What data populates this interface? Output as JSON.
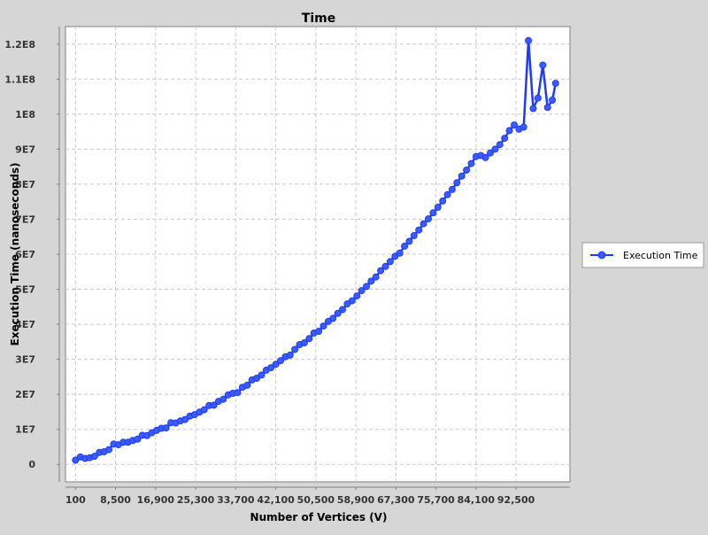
{
  "chart_data": {
    "type": "line",
    "title": "Time",
    "xlabel": "Number of Vertices (V)",
    "ylabel": "Execution Time (nanoseconds)",
    "xlim": [
      -2000,
      103800
    ],
    "ylim": [
      -5000000,
      125000000
    ],
    "x_ticks": [
      {
        "value": 100,
        "label": "100"
      },
      {
        "value": 8500,
        "label": "8,500"
      },
      {
        "value": 16900,
        "label": "16,900"
      },
      {
        "value": 25300,
        "label": "25,300"
      },
      {
        "value": 33700,
        "label": "33,700"
      },
      {
        "value": 42100,
        "label": "42,100"
      },
      {
        "value": 50500,
        "label": "50,500"
      },
      {
        "value": 58900,
        "label": "58,900"
      },
      {
        "value": 67300,
        "label": "67,300"
      },
      {
        "value": 75700,
        "label": "75,700"
      },
      {
        "value": 84100,
        "label": "84,100"
      },
      {
        "value": 92500,
        "label": "92,500"
      }
    ],
    "y_ticks": [
      {
        "value": 0,
        "label": "0"
      },
      {
        "value": 10000000,
        "label": "1E7"
      },
      {
        "value": 20000000,
        "label": "2E7"
      },
      {
        "value": 30000000,
        "label": "3E7"
      },
      {
        "value": 40000000,
        "label": "4E7"
      },
      {
        "value": 50000000,
        "label": "5E7"
      },
      {
        "value": 60000000,
        "label": "6E7"
      },
      {
        "value": 70000000,
        "label": "7E7"
      },
      {
        "value": 80000000,
        "label": "8E7"
      },
      {
        "value": 90000000,
        "label": "9E7"
      },
      {
        "value": 100000000,
        "label": "1E8"
      },
      {
        "value": 110000000,
        "label": "1.1E8"
      },
      {
        "value": 120000000,
        "label": "1.2E8"
      }
    ],
    "grid": true,
    "legend_position": "right",
    "series": [
      {
        "name": "Execution Time",
        "color": "#1f3cf5",
        "marker": "circle",
        "points": [
          [
            100,
            1200000
          ],
          [
            1100,
            2100000
          ],
          [
            2100,
            1700000
          ],
          [
            3100,
            1900000
          ],
          [
            4100,
            2300000
          ],
          [
            5100,
            3400000
          ],
          [
            6100,
            3600000
          ],
          [
            7100,
            4200000
          ],
          [
            8100,
            5800000
          ],
          [
            9100,
            5600000
          ],
          [
            10100,
            6300000
          ],
          [
            11100,
            6300000
          ],
          [
            12100,
            6800000
          ],
          [
            13100,
            7200000
          ],
          [
            14100,
            8300000
          ],
          [
            15100,
            8200000
          ],
          [
            16100,
            9000000
          ],
          [
            17100,
            9700000
          ],
          [
            18100,
            10300000
          ],
          [
            19100,
            10400000
          ],
          [
            20100,
            11900000
          ],
          [
            21100,
            11800000
          ],
          [
            22100,
            12400000
          ],
          [
            23100,
            12800000
          ],
          [
            24100,
            13800000
          ],
          [
            25100,
            14200000
          ],
          [
            26100,
            14900000
          ],
          [
            27100,
            15600000
          ],
          [
            28100,
            16800000
          ],
          [
            29100,
            16900000
          ],
          [
            30100,
            18000000
          ],
          [
            31100,
            18600000
          ],
          [
            32100,
            19800000
          ],
          [
            33100,
            20300000
          ],
          [
            34100,
            20500000
          ],
          [
            35100,
            22000000
          ],
          [
            36100,
            22600000
          ],
          [
            37100,
            24100000
          ],
          [
            38100,
            24600000
          ],
          [
            39100,
            25500000
          ],
          [
            40100,
            26900000
          ],
          [
            41100,
            27600000
          ],
          [
            42100,
            28600000
          ],
          [
            43100,
            29600000
          ],
          [
            44100,
            30700000
          ],
          [
            45100,
            31200000
          ],
          [
            46100,
            32800000
          ],
          [
            47100,
            34200000
          ],
          [
            48100,
            34700000
          ],
          [
            49100,
            35900000
          ],
          [
            50100,
            37500000
          ],
          [
            51100,
            38000000
          ],
          [
            52100,
            39500000
          ],
          [
            53100,
            40800000
          ],
          [
            54100,
            41700000
          ],
          [
            55100,
            43100000
          ],
          [
            56100,
            44200000
          ],
          [
            57100,
            45800000
          ],
          [
            58100,
            46700000
          ],
          [
            59100,
            48100000
          ],
          [
            60100,
            49600000
          ],
          [
            61100,
            50800000
          ],
          [
            62100,
            52300000
          ],
          [
            63100,
            53500000
          ],
          [
            64100,
            55300000
          ],
          [
            65100,
            56500000
          ],
          [
            66100,
            57900000
          ],
          [
            67100,
            59400000
          ],
          [
            68100,
            60300000
          ],
          [
            69100,
            62300000
          ],
          [
            70100,
            63700000
          ],
          [
            71100,
            65300000
          ],
          [
            72100,
            66900000
          ],
          [
            73100,
            68700000
          ],
          [
            74100,
            70100000
          ],
          [
            75100,
            71800000
          ],
          [
            76100,
            73400000
          ],
          [
            77100,
            75200000
          ],
          [
            78100,
            77000000
          ],
          [
            79100,
            78500000
          ],
          [
            80100,
            80400000
          ],
          [
            81100,
            82300000
          ],
          [
            82100,
            84000000
          ],
          [
            83100,
            85900000
          ],
          [
            84100,
            87900000
          ],
          [
            85100,
            88200000
          ],
          [
            86100,
            87600000
          ],
          [
            87100,
            88900000
          ],
          [
            88100,
            90000000
          ],
          [
            89100,
            91300000
          ],
          [
            90100,
            93100000
          ],
          [
            91100,
            95300000
          ],
          [
            92100,
            96900000
          ],
          [
            93100,
            95700000
          ],
          [
            94100,
            96300000
          ],
          [
            95100,
            121000000
          ],
          [
            96100,
            101600000
          ],
          [
            97100,
            104600000
          ],
          [
            98100,
            114000000
          ],
          [
            99100,
            101900000
          ],
          [
            100100,
            104000000
          ],
          [
            100800,
            108800000
          ]
        ]
      }
    ]
  }
}
